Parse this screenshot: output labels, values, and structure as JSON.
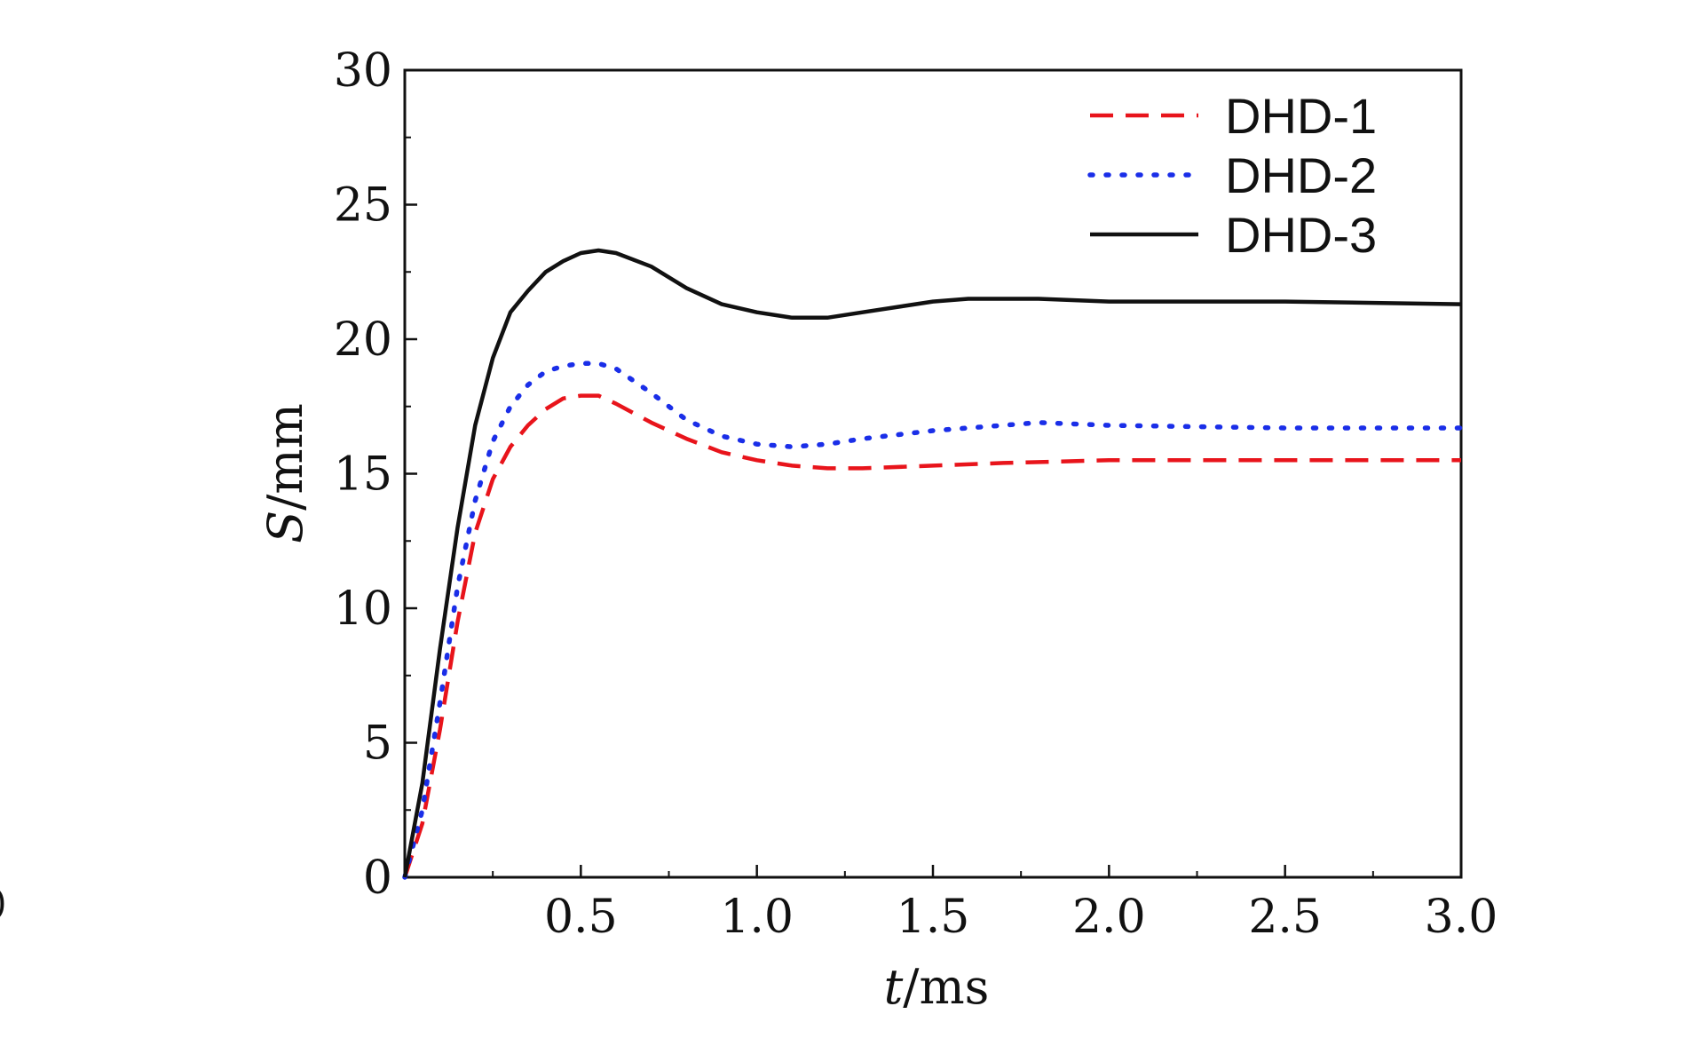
{
  "chart_data": {
    "type": "line",
    "xlabel_italic": "t",
    "xlabel_unit": "/ms",
    "ylabel_italic": "S",
    "ylabel_unit": "/mm",
    "xlim": [
      0,
      3.0
    ],
    "ylim": [
      0,
      30
    ],
    "xticks": [
      "0.5",
      "1.0",
      "1.5",
      "2.0",
      "2.5",
      "3.0"
    ],
    "yticks": [
      "0",
      "5",
      "10",
      "15",
      "20",
      "25",
      "30"
    ],
    "grid": false,
    "legend_position": "top-right",
    "series": [
      {
        "name": "DHD-1",
        "color": "#e8141b",
        "style": "dashed",
        "x": [
          0,
          0.05,
          0.1,
          0.15,
          0.2,
          0.25,
          0.3,
          0.35,
          0.4,
          0.45,
          0.5,
          0.55,
          0.6,
          0.7,
          0.8,
          0.9,
          1.0,
          1.1,
          1.2,
          1.3,
          1.5,
          1.7,
          2.0,
          2.5,
          3.0
        ],
        "values": [
          0,
          2.0,
          5.5,
          9.5,
          12.8,
          14.8,
          16.0,
          16.8,
          17.4,
          17.8,
          17.9,
          17.9,
          17.6,
          16.9,
          16.3,
          15.8,
          15.5,
          15.3,
          15.2,
          15.2,
          15.3,
          15.4,
          15.5,
          15.5,
          15.5
        ]
      },
      {
        "name": "DHD-2",
        "color": "#1a2ee8",
        "style": "dotted",
        "x": [
          0,
          0.05,
          0.1,
          0.15,
          0.2,
          0.25,
          0.3,
          0.35,
          0.4,
          0.45,
          0.5,
          0.55,
          0.6,
          0.7,
          0.8,
          0.9,
          1.0,
          1.1,
          1.2,
          1.3,
          1.5,
          1.7,
          1.8,
          2.0,
          2.5,
          3.0
        ],
        "values": [
          0,
          2.5,
          6.5,
          10.8,
          14.0,
          16.2,
          17.5,
          18.3,
          18.8,
          19.0,
          19.1,
          19.1,
          18.9,
          18.0,
          17.0,
          16.4,
          16.1,
          16.0,
          16.1,
          16.3,
          16.6,
          16.8,
          16.9,
          16.8,
          16.7,
          16.7
        ]
      },
      {
        "name": "DHD-3",
        "color": "#111111",
        "style": "solid",
        "x": [
          0,
          0.05,
          0.1,
          0.15,
          0.2,
          0.25,
          0.3,
          0.35,
          0.4,
          0.45,
          0.5,
          0.55,
          0.6,
          0.7,
          0.8,
          0.9,
          1.0,
          1.1,
          1.2,
          1.3,
          1.5,
          1.6,
          1.7,
          1.8,
          2.0,
          2.5,
          3.0
        ],
        "values": [
          0,
          3.5,
          8.5,
          13.0,
          16.8,
          19.3,
          21.0,
          21.8,
          22.5,
          22.9,
          23.2,
          23.3,
          23.2,
          22.7,
          21.9,
          21.3,
          21.0,
          20.8,
          20.8,
          21.0,
          21.4,
          21.5,
          21.5,
          21.5,
          21.4,
          21.4,
          21.3
        ]
      }
    ]
  },
  "stray_mark": ")"
}
